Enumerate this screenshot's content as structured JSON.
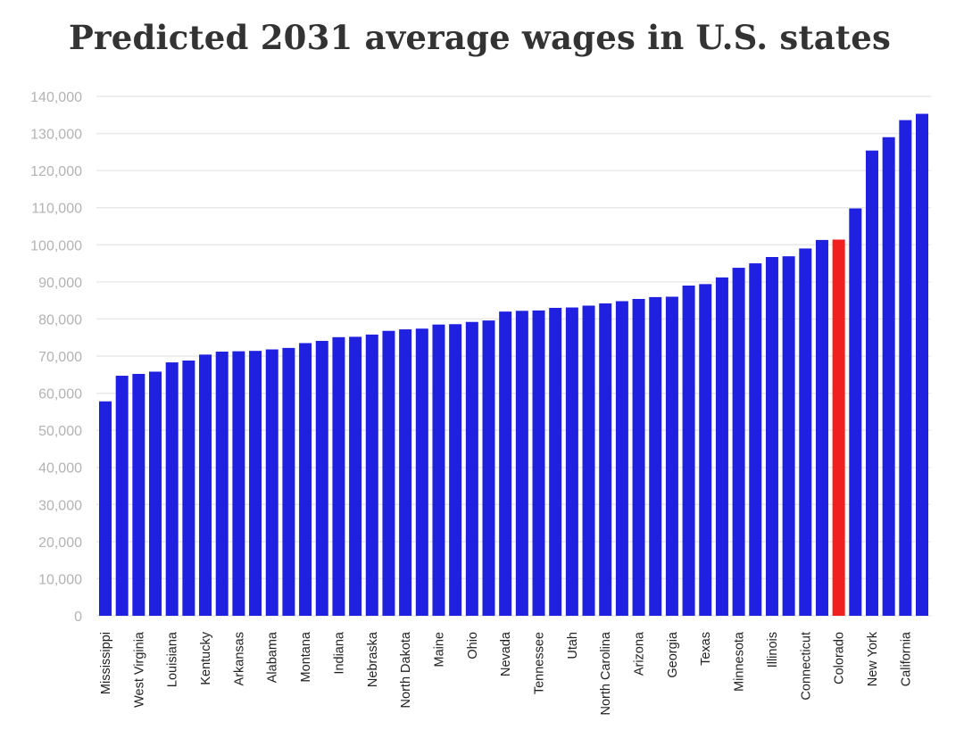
{
  "chart_data": {
    "type": "bar",
    "title": "Predicted 2031 average wages in U.S. states",
    "xlabel": "",
    "ylabel": "",
    "ylim": [
      0,
      140000
    ],
    "yticks": [
      0,
      10000,
      20000,
      30000,
      40000,
      50000,
      60000,
      70000,
      80000,
      90000,
      100000,
      110000,
      120000,
      130000,
      140000
    ],
    "ytick_labels": [
      "0",
      "10,000",
      "20,000",
      "30,000",
      "40,000",
      "50,000",
      "60,000",
      "70,000",
      "80,000",
      "90,000",
      "100,000",
      "110,000",
      "120,000",
      "130,000",
      "140,000"
    ],
    "grid": true,
    "legend": "none",
    "bar_color": "#2020e0",
    "highlight_color": "#f02020",
    "highlight_index": 44,
    "labels_shown": [
      "Mississippi",
      "West Virginia",
      "Louisiana",
      "Kentucky",
      "Arkansas",
      "Alabama",
      "Montana",
      "Indiana",
      "Nebraska",
      "North Dakota",
      "Maine",
      "Ohio",
      "Nevada",
      "Tennessee",
      "Utah",
      "North Carolina",
      "Arizona",
      "Georgia",
      "Texas",
      "Minnesota",
      "Illinois",
      "Connecticut",
      "Colorado",
      "New York",
      "California"
    ],
    "values": [
      57800,
      64700,
      65200,
      65800,
      68300,
      68800,
      70400,
      71200,
      71300,
      71400,
      71800,
      72200,
      73500,
      74100,
      75100,
      75200,
      75800,
      76800,
      77200,
      77400,
      78500,
      78600,
      79200,
      79600,
      82000,
      82200,
      82300,
      83000,
      83100,
      83600,
      84200,
      84800,
      85400,
      85900,
      86000,
      89000,
      89400,
      91200,
      93800,
      95000,
      96700,
      96900,
      99000,
      101300,
      101400,
      109800,
      125400,
      129000,
      133600,
      135300
    ]
  }
}
